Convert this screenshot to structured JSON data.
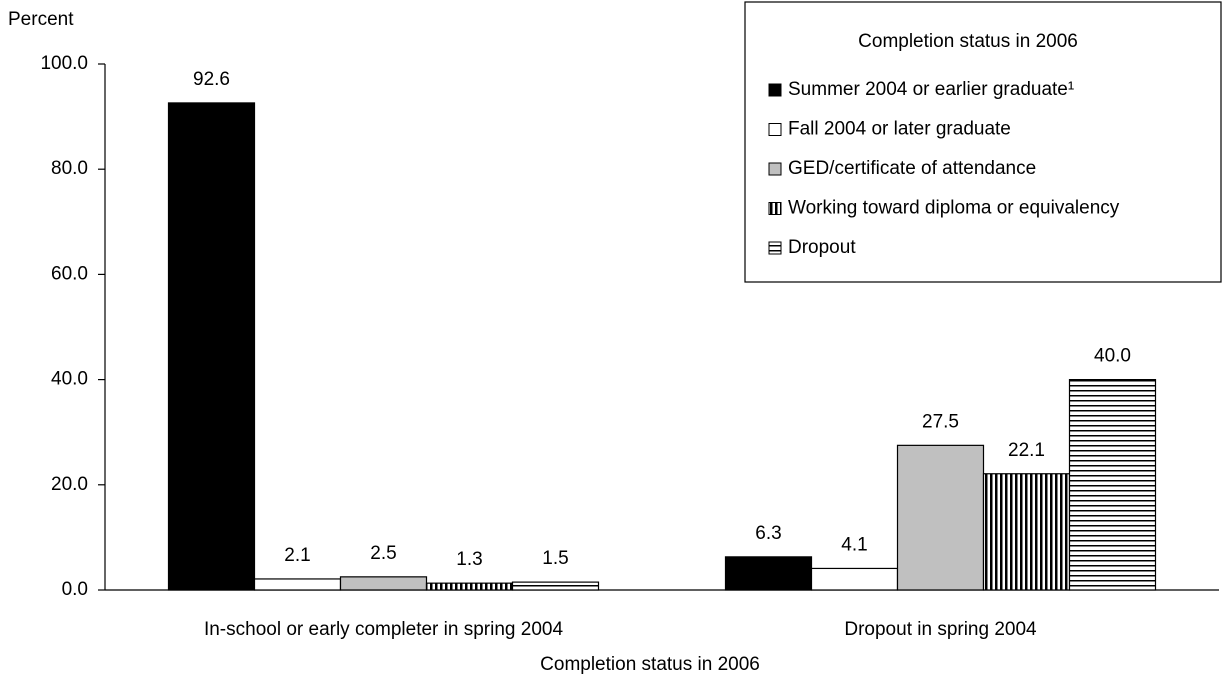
{
  "chart_data": {
    "type": "bar",
    "y_axis_label": "Percent",
    "x_axis_label": "Completion status in 2006",
    "legend_title": "Completion status in 2006",
    "legend_position": "upper right",
    "categories": [
      "In-school or early completer in spring 2004",
      "Dropout in spring 2004"
    ],
    "series": [
      {
        "name": "Summer 2004 or earlier graduate¹",
        "color": "#000000",
        "pattern": "solid",
        "values": [
          92.6,
          6.3
        ],
        "value_labels": [
          "92.6",
          "6.3"
        ]
      },
      {
        "name": "Fall 2004 or later graduate",
        "color": "#ffffff",
        "pattern": "solid",
        "values": [
          2.1,
          4.1
        ],
        "value_labels": [
          "2.1",
          "4.1"
        ]
      },
      {
        "name": "GED/certificate of attendance",
        "color": "#c0c0c0",
        "pattern": "solid",
        "values": [
          2.5,
          27.5
        ],
        "value_labels": [
          "2.5",
          "27.5"
        ]
      },
      {
        "name": "Working toward diploma or equivalency",
        "color": "#000000",
        "pattern": "vertical",
        "values": [
          1.3,
          22.1
        ],
        "value_labels": [
          "1.3",
          "22.1"
        ]
      },
      {
        "name": "Dropout",
        "color": "#000000",
        "pattern": "horizontal",
        "values": [
          1.5,
          40.0
        ],
        "value_labels": [
          "1.5",
          "40.0"
        ]
      }
    ],
    "ylim": [
      0,
      100
    ],
    "yticks": [
      {
        "value": 0,
        "label": "0.0"
      },
      {
        "value": 20,
        "label": "20.0"
      },
      {
        "value": 40,
        "label": "40.0"
      },
      {
        "value": 60,
        "label": "60.0"
      },
      {
        "value": 80,
        "label": "80.0"
      },
      {
        "value": 100,
        "label": "100.0"
      }
    ],
    "grid": false
  }
}
